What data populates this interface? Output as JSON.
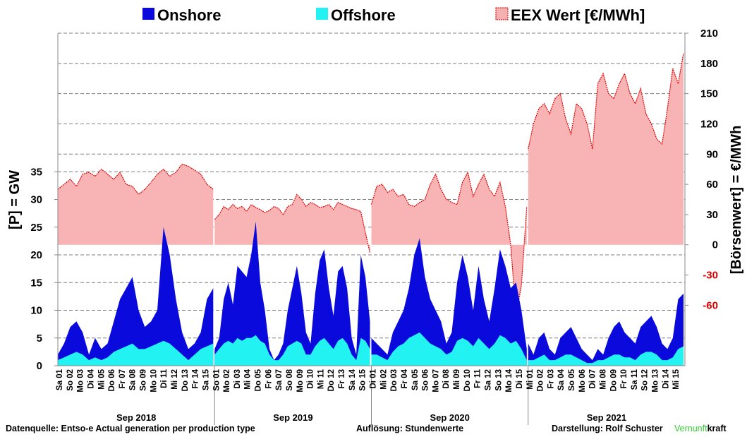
{
  "chart_data": {
    "type": "area",
    "legend": {
      "placement": "top",
      "items": [
        {
          "name": "Onshore",
          "color": "#0a0adc"
        },
        {
          "name": "Offshore",
          "color": "#22f2f2"
        },
        {
          "name": "EEX Wert [€/MWh]",
          "color": "#f5b0b0"
        }
      ]
    },
    "ylabel_left": "[P]  = GW",
    "ylabel_right": "[Börsenwert]  = €/MWh",
    "yticks_left": [
      "0",
      "5",
      "10",
      "15",
      "20",
      "25",
      "30",
      "35"
    ],
    "yticks_right": [
      "-60",
      "-30",
      "0",
      "30",
      "60",
      "90",
      "120",
      "150",
      "180",
      "210"
    ],
    "ylim_left": [
      0,
      60
    ],
    "price_ylim": [
      -120,
      210
    ],
    "grid": true,
    "periods": [
      {
        "label": "Sep 2018",
        "days": [
          "Sa 01",
          "So 02",
          "Mo 03",
          "Di 04",
          "Mi 05",
          "Do 06",
          "Fr 07",
          "Sa 08",
          "So 09",
          "Mo 10",
          "Di 11",
          "Mi 12",
          "Do 13",
          "Fr 14",
          "Sa 15"
        ],
        "onshore": [
          2,
          4,
          7,
          8,
          6,
          2,
          5,
          3,
          4,
          8,
          12,
          14,
          16,
          10,
          7,
          8,
          10,
          25,
          20,
          12,
          6,
          3,
          4,
          6,
          12,
          14
        ],
        "offshore": [
          1,
          1.5,
          2,
          2.5,
          2,
          1,
          1.5,
          1,
          1.5,
          2.5,
          3,
          3.5,
          4,
          3,
          3,
          3.5,
          4,
          4.5,
          4,
          3,
          2,
          1,
          2,
          3,
          3.5,
          4
        ],
        "price": [
          55,
          60,
          65,
          58,
          70,
          72,
          68,
          75,
          70,
          65,
          72,
          60,
          58,
          50,
          55,
          62,
          70,
          75,
          68,
          72,
          80,
          78,
          74,
          70,
          60,
          55
        ]
      },
      {
        "label": "Sep 2019",
        "days": [
          "So 01",
          "Mo 02",
          "Di 03",
          "Mi 04",
          "Do 05",
          "Fr 06",
          "Sa 07",
          "So 08",
          "Mo 09",
          "Di 10",
          "Mi 11",
          "Do 12",
          "Fr 13",
          "Sa 14",
          "So 15"
        ],
        "onshore": [
          3,
          5,
          12,
          15,
          11,
          18,
          17,
          16,
          20,
          26,
          15,
          10,
          3,
          1,
          2,
          4,
          10,
          14,
          18,
          13,
          6,
          4,
          13,
          19,
          21,
          14,
          9,
          17,
          18,
          14,
          5,
          2,
          20,
          16,
          8
        ],
        "offshore": [
          2,
          3,
          4,
          4.5,
          4,
          5,
          4.5,
          5,
          5,
          5.5,
          4.5,
          4,
          2,
          1,
          1,
          2,
          3.5,
          4,
          4.5,
          4,
          2,
          2,
          3.5,
          4.5,
          5,
          4,
          3,
          4.5,
          5,
          4,
          2,
          1,
          5,
          4.5,
          3
        ],
        "price": [
          25,
          30,
          38,
          35,
          40,
          36,
          38,
          33,
          40,
          37,
          35,
          32,
          34,
          38,
          36,
          30,
          38,
          40,
          50,
          45,
          38,
          42,
          40,
          37,
          38,
          40,
          35,
          42,
          40,
          38,
          36,
          35,
          33,
          12,
          -8
        ]
      },
      {
        "label": "Sep 2020",
        "days": [
          "Di 01",
          "Mi 02",
          "Do 03",
          "Fr 04",
          "Sa 05",
          "So 06",
          "Mo 07",
          "Di 08",
          "Mi 09",
          "Do 10",
          "Fr 11",
          "Sa 12",
          "So 13",
          "Mo 14",
          "Di 15"
        ],
        "onshore": [
          5,
          4,
          3,
          2,
          6,
          8,
          10,
          14,
          20,
          23,
          16,
          12,
          10,
          8,
          4,
          6,
          15,
          20,
          16,
          10,
          18,
          12,
          8,
          14,
          21,
          18,
          14,
          15,
          10,
          3
        ],
        "offshore": [
          2,
          2,
          1.5,
          1,
          2.5,
          3.5,
          4,
          5,
          5.5,
          6,
          5,
          4,
          3.5,
          3,
          2,
          2.5,
          4.5,
          5,
          4.5,
          3.5,
          5,
          4,
          3,
          4,
          5.5,
          5,
          4,
          4.5,
          3,
          1
        ],
        "price": [
          40,
          58,
          60,
          52,
          55,
          48,
          50,
          40,
          38,
          42,
          45,
          60,
          70,
          55,
          45,
          42,
          40,
          62,
          72,
          48,
          60,
          70,
          55,
          48,
          62,
          38,
          0,
          -70,
          -40,
          38
        ]
      },
      {
        "label": "Sep 2021",
        "days": [
          "Mi 01",
          "Do 02",
          "Fr 03",
          "Sa 04",
          "So 05",
          "Mo 06",
          "Di 07",
          "Mi 08",
          "Do 09",
          "Fr 10",
          "Sa 11",
          "So 12",
          "Mo 13",
          "Di 14",
          "Mi 15"
        ],
        "onshore": [
          4,
          2,
          5,
          6,
          3,
          2,
          5,
          6,
          7,
          5,
          3,
          2,
          1,
          3,
          2,
          5,
          7,
          8,
          6,
          5,
          4,
          7,
          8,
          9,
          7,
          4,
          3,
          5,
          12,
          13
        ],
        "offshore": [
          1,
          1,
          1.5,
          2,
          1,
          1,
          1.5,
          2,
          2,
          1.5,
          1,
          0.5,
          0.5,
          1,
          1,
          1.5,
          2,
          2,
          1.5,
          1.5,
          1,
          2,
          2.5,
          2.5,
          2,
          1,
          1,
          1.5,
          3,
          3.5
        ],
        "price": [
          95,
          120,
          135,
          140,
          130,
          145,
          150,
          125,
          110,
          140,
          135,
          120,
          95,
          160,
          170,
          150,
          145,
          160,
          170,
          150,
          140,
          155,
          130,
          120,
          105,
          100,
          135,
          175,
          160,
          190
        ]
      }
    ]
  },
  "footer": {
    "source": "Datenquelle: Entso-e   Actual generation per production type",
    "resolution": "Auflösung: Stundenwerte",
    "author": "Darstellung:  Rolf Schuster",
    "brand_green": "Vernunft",
    "brand_black": "kraft"
  }
}
